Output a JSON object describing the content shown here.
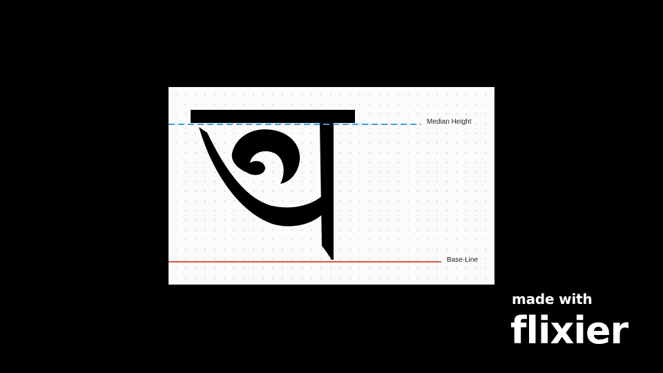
{
  "diagram": {
    "glyph": "অ",
    "guides": {
      "median_label": "Median Height",
      "baseline_label": "Base-Line"
    },
    "colors": {
      "median_line": "#3aa0e0",
      "baseline_line": "#d9573c",
      "glyph": "#000000",
      "slide_background": "#fbfbfb",
      "page_background": "#000000"
    }
  },
  "watermark": {
    "line1": "made with",
    "line2": "flixier"
  }
}
